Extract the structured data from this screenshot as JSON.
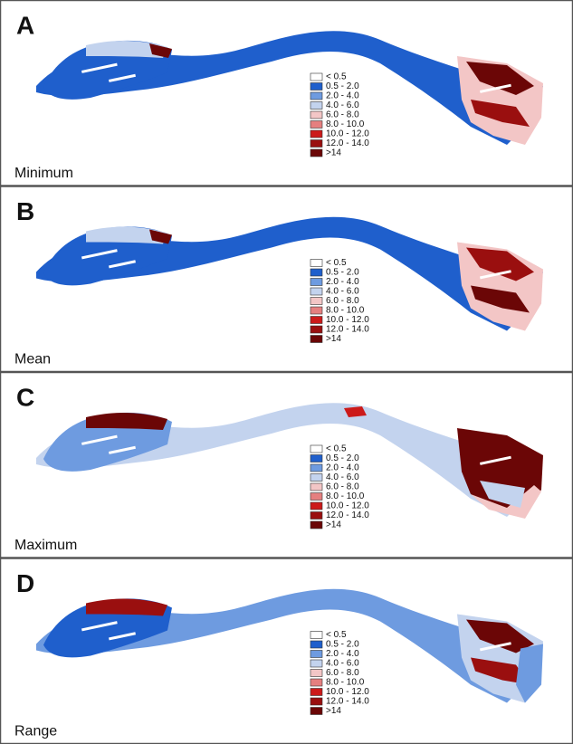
{
  "panels": [
    {
      "letter": "A",
      "label": "Minimum"
    },
    {
      "letter": "B",
      "label": "Mean"
    },
    {
      "letter": "C",
      "label": "Maximum"
    },
    {
      "letter": "D",
      "label": "Range"
    }
  ],
  "legend": [
    {
      "label": "< 0.5",
      "color": "#ffffff"
    },
    {
      "label": "0.5 - 2.0",
      "color": "#1f5fcc"
    },
    {
      "label": "2.0 - 4.0",
      "color": "#6e9be0"
    },
    {
      "label": "4.0 - 6.0",
      "color": "#c3d3ee"
    },
    {
      "label": "6.0 - 8.0",
      "color": "#f3c6c6"
    },
    {
      "label": "8.0 - 10.0",
      "color": "#e57f7f"
    },
    {
      "label": "10.0 - 12.0",
      "color": "#cc1a1a"
    },
    {
      "label": "12.0 - 14.0",
      "color": "#9a0f0f"
    },
    {
      "label": ">14",
      "color": "#6b0606"
    }
  ]
}
